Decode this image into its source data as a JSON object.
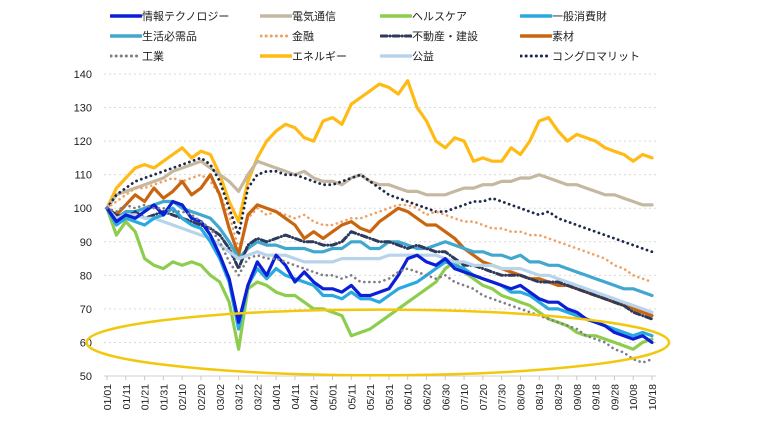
{
  "chart_data": {
    "type": "line",
    "title": "",
    "xlabel": "",
    "ylabel": "",
    "ylim": [
      50,
      140
    ],
    "yticks": [
      50,
      60,
      70,
      80,
      90,
      100,
      110,
      120,
      130,
      140
    ],
    "grid": true,
    "legend_position": "top",
    "x": [
      "01/01",
      "01/06",
      "01/11",
      "01/16",
      "01/21",
      "01/26",
      "01/31",
      "02/05",
      "02/10",
      "02/15",
      "02/20",
      "02/25",
      "03/02",
      "03/07",
      "03/12",
      "03/17",
      "03/22",
      "03/27",
      "04/01",
      "04/06",
      "04/11",
      "04/16",
      "04/21",
      "04/26",
      "05/01",
      "05/06",
      "05/11",
      "05/16",
      "05/21",
      "05/26",
      "05/31",
      "06/05",
      "06/10",
      "06/15",
      "06/20",
      "06/25",
      "06/30",
      "07/05",
      "07/10",
      "07/15",
      "07/20",
      "07/25",
      "07/30",
      "08/04",
      "08/09",
      "08/14",
      "08/19",
      "08/24",
      "08/29",
      "09/03",
      "09/08",
      "09/13",
      "09/18",
      "09/23",
      "09/28",
      "10/03",
      "10/08",
      "10/13",
      "10/18"
    ],
    "xtick_labels": [
      "01/01",
      "01/11",
      "01/21",
      "01/31",
      "02/10",
      "02/20",
      "03/02",
      "03/12",
      "03/22",
      "04/01",
      "04/11",
      "04/21",
      "05/01",
      "05/11",
      "05/21",
      "05/31",
      "06/10",
      "06/20",
      "06/30",
      "07/10",
      "07/20",
      "07/30",
      "08/09",
      "08/19",
      "08/29",
      "09/08",
      "09/18",
      "09/28",
      "10/08",
      "10/18"
    ],
    "series": [
      {
        "name": "情報テクノロジー",
        "color": "#0a1fd6",
        "style": "solid",
        "width": 3.2,
        "values": [
          100,
          96,
          98,
          97,
          99,
          101,
          98,
          102,
          101,
          97,
          96,
          92,
          86,
          79,
          66,
          77,
          84,
          80,
          86,
          83,
          78,
          81,
          78,
          76,
          76,
          75,
          77,
          74,
          74,
          75,
          76,
          80,
          85,
          86,
          84,
          83,
          85,
          82,
          81,
          80,
          79,
          78,
          77,
          76,
          77,
          75,
          73,
          72,
          72,
          70,
          69,
          67,
          66,
          65,
          63,
          62,
          61,
          62,
          60
        ]
      },
      {
        "name": "電気通信",
        "color": "#c4b8a0",
        "style": "solid",
        "width": 3.2,
        "values": [
          100,
          104,
          105,
          106,
          107,
          108,
          109,
          111,
          112,
          113,
          114,
          112,
          110,
          108,
          105,
          110,
          114,
          113,
          112,
          111,
          110,
          111,
          109,
          108,
          108,
          107,
          109,
          110,
          108,
          107,
          107,
          106,
          105,
          105,
          104,
          104,
          104,
          105,
          106,
          106,
          107,
          107,
          108,
          108,
          109,
          109,
          110,
          109,
          108,
          107,
          107,
          106,
          105,
          104,
          104,
          103,
          102,
          101,
          101
        ]
      },
      {
        "name": "ヘルスケア",
        "color": "#8dcd4e",
        "style": "solid",
        "width": 3.2,
        "values": [
          100,
          92,
          96,
          93,
          85,
          83,
          82,
          84,
          83,
          84,
          83,
          80,
          78,
          72,
          58,
          76,
          78,
          77,
          75,
          74,
          74,
          72,
          70,
          70,
          69,
          68,
          62,
          63,
          64,
          66,
          68,
          70,
          72,
          74,
          76,
          78,
          82,
          84,
          81,
          79,
          77,
          76,
          74,
          73,
          72,
          71,
          69,
          67,
          66,
          65,
          63,
          62,
          62,
          61,
          60,
          59,
          58,
          60,
          61
        ]
      },
      {
        "name": "一般消費財",
        "color": "#2aa9e0",
        "style": "solid",
        "width": 3.2,
        "values": [
          100,
          95,
          97,
          96,
          95,
          97,
          98,
          100,
          97,
          95,
          94,
          90,
          85,
          78,
          64,
          77,
          82,
          79,
          82,
          80,
          79,
          78,
          77,
          74,
          74,
          73,
          75,
          73,
          73,
          72,
          74,
          76,
          77,
          78,
          80,
          82,
          84,
          83,
          82,
          80,
          79,
          78,
          77,
          75,
          75,
          74,
          72,
          70,
          70,
          69,
          68,
          67,
          66,
          65,
          64,
          63,
          62,
          63,
          62
        ]
      },
      {
        "name": "生活必需品",
        "color": "#41a7cf",
        "style": "solid",
        "width": 3.2,
        "values": [
          100,
          97,
          99,
          99,
          100,
          101,
          102,
          102,
          100,
          99,
          98,
          97,
          94,
          90,
          85,
          88,
          90,
          89,
          89,
          88,
          88,
          88,
          87,
          87,
          88,
          88,
          90,
          90,
          88,
          88,
          90,
          90,
          89,
          88,
          88,
          89,
          90,
          89,
          88,
          87,
          87,
          86,
          86,
          85,
          86,
          84,
          84,
          83,
          83,
          82,
          81,
          80,
          79,
          78,
          77,
          76,
          76,
          75,
          74
        ]
      },
      {
        "name": "金融",
        "color": "#f0a060",
        "style": "dotted",
        "width": 2.6,
        "values": [
          100,
          102,
          104,
          106,
          106,
          107,
          108,
          109,
          108,
          109,
          110,
          108,
          104,
          98,
          88,
          97,
          100,
          98,
          99,
          98,
          97,
          98,
          96,
          95,
          95,
          96,
          97,
          97,
          98,
          99,
          100,
          101,
          101,
          100,
          98,
          99,
          98,
          97,
          96,
          96,
          95,
          94,
          94,
          93,
          93,
          92,
          92,
          91,
          90,
          89,
          88,
          87,
          86,
          85,
          83,
          82,
          80,
          79,
          78
        ]
      },
      {
        "name": "不動産・建設",
        "color": "#2e3a5c",
        "style": "dashed",
        "width": 3.0,
        "values": [
          100,
          98,
          97,
          99,
          97,
          98,
          99,
          98,
          97,
          96,
          95,
          94,
          92,
          88,
          82,
          89,
          91,
          90,
          91,
          92,
          91,
          90,
          90,
          89,
          89,
          90,
          93,
          92,
          91,
          90,
          90,
          89,
          88,
          89,
          88,
          87,
          87,
          85,
          83,
          83,
          82,
          81,
          80,
          80,
          80,
          79,
          78,
          78,
          78,
          77,
          76,
          75,
          74,
          73,
          72,
          71,
          69,
          68,
          67
        ]
      },
      {
        "name": "素材",
        "color": "#c9650f",
        "style": "solid",
        "width": 3.2,
        "values": [
          100,
          98,
          101,
          104,
          102,
          106,
          103,
          105,
          108,
          104,
          106,
          110,
          104,
          94,
          86,
          98,
          101,
          100,
          99,
          97,
          95,
          91,
          93,
          91,
          93,
          95,
          96,
          94,
          93,
          96,
          98,
          100,
          99,
          97,
          95,
          95,
          93,
          91,
          88,
          86,
          84,
          83,
          82,
          81,
          80,
          79,
          79,
          78,
          77,
          77,
          76,
          75,
          74,
          73,
          72,
          71,
          70,
          69,
          68
        ]
      },
      {
        "name": "工業",
        "color": "#7d7d84",
        "style": "dotted",
        "width": 2.6,
        "values": [
          100,
          99,
          101,
          100,
          101,
          100,
          100,
          99,
          99,
          98,
          96,
          94,
          90,
          84,
          80,
          85,
          86,
          85,
          85,
          84,
          83,
          82,
          81,
          80,
          80,
          79,
          80,
          78,
          78,
          78,
          79,
          81,
          82,
          81,
          80,
          79,
          80,
          78,
          77,
          76,
          74,
          73,
          72,
          71,
          70,
          69,
          68,
          67,
          66,
          65,
          64,
          62,
          61,
          60,
          58,
          57,
          55,
          54,
          55
        ]
      },
      {
        "name": "エネルギー",
        "color": "#ffba14",
        "style": "solid",
        "width": 3.2,
        "values": [
          100,
          106,
          109,
          112,
          113,
          112,
          114,
          116,
          118,
          115,
          117,
          116,
          110,
          102,
          96,
          108,
          115,
          120,
          123,
          125,
          124,
          121,
          120,
          126,
          127,
          125,
          131,
          133,
          135,
          137,
          136,
          134,
          138,
          130,
          126,
          120,
          118,
          121,
          120,
          114,
          115,
          114,
          114,
          118,
          116,
          120,
          126,
          127,
          123,
          120,
          122,
          121,
          120,
          118,
          117,
          116,
          114,
          116,
          115
        ]
      },
      {
        "name": "公益",
        "color": "#b8d3ec",
        "style": "solid",
        "width": 3.2,
        "values": [
          100,
          97,
          98,
          98,
          97,
          97,
          96,
          95,
          94,
          93,
          92,
          91,
          89,
          87,
          85,
          86,
          87,
          86,
          86,
          86,
          85,
          84,
          84,
          84,
          84,
          85,
          85,
          85,
          85,
          85,
          86,
          86,
          86,
          86,
          86,
          86,
          85,
          84,
          84,
          83,
          83,
          83,
          82,
          82,
          82,
          81,
          80,
          80,
          79,
          78,
          77,
          76,
          75,
          74,
          73,
          72,
          71,
          70,
          69
        ]
      },
      {
        "name": "コングロマリット",
        "color": "#1e2a4a",
        "style": "dotted",
        "width": 2.8,
        "values": [
          100,
          104,
          106,
          108,
          109,
          110,
          111,
          112,
          113,
          114,
          115,
          113,
          108,
          100,
          92,
          106,
          110,
          111,
          111,
          110,
          110,
          109,
          108,
          107,
          107,
          108,
          109,
          110,
          108,
          106,
          104,
          103,
          102,
          101,
          100,
          99,
          99,
          100,
          101,
          102,
          102,
          103,
          102,
          101,
          100,
          99,
          98,
          99,
          97,
          96,
          95,
          94,
          93,
          92,
          91,
          90,
          89,
          88,
          87
        ]
      }
    ]
  },
  "annotation": {
    "type": "ellipse-highlight",
    "color": "#f2c80f",
    "x_range": [
      "10/04",
      "10/18"
    ],
    "y_range": [
      52,
      68
    ]
  }
}
